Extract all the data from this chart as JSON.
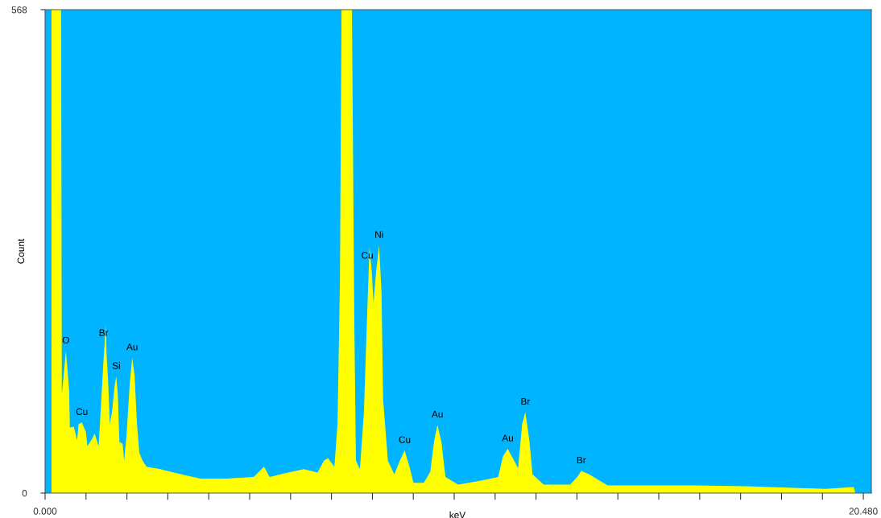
{
  "chart_data": {
    "type": "area",
    "xlabel": "keV",
    "ylabel": "Count",
    "xlim": [
      0,
      20.68
    ],
    "ylim": [
      0,
      568
    ],
    "yticks": [
      0,
      568
    ],
    "xticks": [
      {
        "value": 0,
        "label": "0.000"
      },
      {
        "value": 1.024,
        "label": null
      },
      {
        "value": 2.048,
        "label": null
      },
      {
        "value": 3.072,
        "label": null
      },
      {
        "value": 4.096,
        "label": null
      },
      {
        "value": 5.12,
        "label": null
      },
      {
        "value": 6.144,
        "label": null
      },
      {
        "value": 7.168,
        "label": null
      },
      {
        "value": 8.192,
        "label": null
      },
      {
        "value": 9.216,
        "label": null
      },
      {
        "value": 10.24,
        "label": null
      },
      {
        "value": 11.264,
        "label": null
      },
      {
        "value": 12.288,
        "label": null
      },
      {
        "value": 13.312,
        "label": null
      },
      {
        "value": 14.336,
        "label": null
      },
      {
        "value": 15.36,
        "label": null
      },
      {
        "value": 16.384,
        "label": null
      },
      {
        "value": 17.408,
        "label": null
      },
      {
        "value": 18.432,
        "label": null
      },
      {
        "value": 19.456,
        "label": null
      },
      {
        "value": 20.48,
        "label": "20.480"
      }
    ],
    "grid": false,
    "legend": false,
    "series": [
      {
        "color": "#ffff00",
        "x": [
          0.16,
          0.4,
          0.42,
          0.48,
          0.52,
          0.56,
          0.6,
          0.62,
          0.72,
          0.8,
          0.84,
          0.92,
          1.02,
          1.06,
          1.18,
          1.24,
          1.34,
          1.4,
          1.46,
          1.52,
          1.54,
          1.58,
          1.62,
          1.68,
          1.74,
          1.78,
          1.82,
          1.86,
          1.94,
          1.98,
          2.04,
          2.12,
          2.18,
          2.24,
          2.3,
          2.36,
          2.44,
          2.54,
          2.88,
          3.22,
          3.88,
          4.54,
          5.22,
          5.48,
          5.62,
          6.08,
          6.48,
          6.82,
          6.98,
          7.08,
          7.24,
          7.32,
          7.38,
          7.42,
          7.68,
          7.74,
          7.78,
          7.88,
          7.98,
          8.04,
          8.12,
          8.18,
          8.22,
          8.28,
          8.36,
          8.42,
          8.46,
          8.58,
          8.74,
          8.88,
          9.0,
          9.12,
          9.22,
          9.48,
          9.64,
          9.74,
          9.82,
          9.92,
          10.02,
          10.34,
          10.94,
          11.34,
          11.46,
          11.58,
          11.74,
          11.84,
          11.94,
          12.02,
          12.12,
          12.2,
          12.48,
          13.14,
          13.32,
          13.42,
          13.62,
          14.08,
          14.88,
          16.22,
          17.54,
          18.88,
          19.54,
          20.24,
          20.28
        ],
        "values": [
          568,
          568,
          116,
          146,
          167,
          145,
          121,
          77,
          78,
          62,
          81,
          83,
          72,
          55,
          64,
          70,
          55,
          104,
          154,
          198,
          162,
          129,
          81,
          97,
          126,
          137,
          116,
          60,
          58,
          38,
          69,
          129,
          159,
          138,
          81,
          47,
          38,
          31,
          28,
          24,
          17,
          17,
          19,
          31,
          19,
          24,
          28,
          24,
          38,
          41,
          31,
          81,
          251,
          568,
          568,
          198,
          38,
          28,
          95,
          182,
          289,
          258,
          223,
          258,
          291,
          236,
          110,
          38,
          22,
          38,
          50,
          31,
          12,
          12,
          25,
          62,
          80,
          60,
          19,
          10,
          15,
          19,
          43,
          52,
          38,
          29,
          81,
          95,
          62,
          22,
          10,
          10,
          19,
          26,
          22,
          9,
          9,
          9,
          8,
          6,
          5,
          7,
          0
        ]
      }
    ],
    "annotations": [
      {
        "text": "O",
        "x": 0.52,
        "y": 167
      },
      {
        "text": "Cu",
        "x": 0.92,
        "y": 83
      },
      {
        "text": "Br",
        "x": 1.52,
        "y": 198
      },
      {
        "text": "Si",
        "x": 1.78,
        "y": 137
      },
      {
        "text": "Au",
        "x": 2.18,
        "y": 159
      },
      {
        "text": "Cu",
        "x": 8.12,
        "y": 289
      },
      {
        "text": "Ni",
        "x": 8.36,
        "y": 291
      },
      {
        "text": "Cu",
        "x": 9.0,
        "y": 50
      },
      {
        "text": "Au",
        "x": 9.82,
        "y": 80
      },
      {
        "text": "Au",
        "x": 11.58,
        "y": 52
      },
      {
        "text": "Br",
        "x": 12.02,
        "y": 95
      },
      {
        "text": "Br",
        "x": 13.42,
        "y": 26
      }
    ]
  }
}
